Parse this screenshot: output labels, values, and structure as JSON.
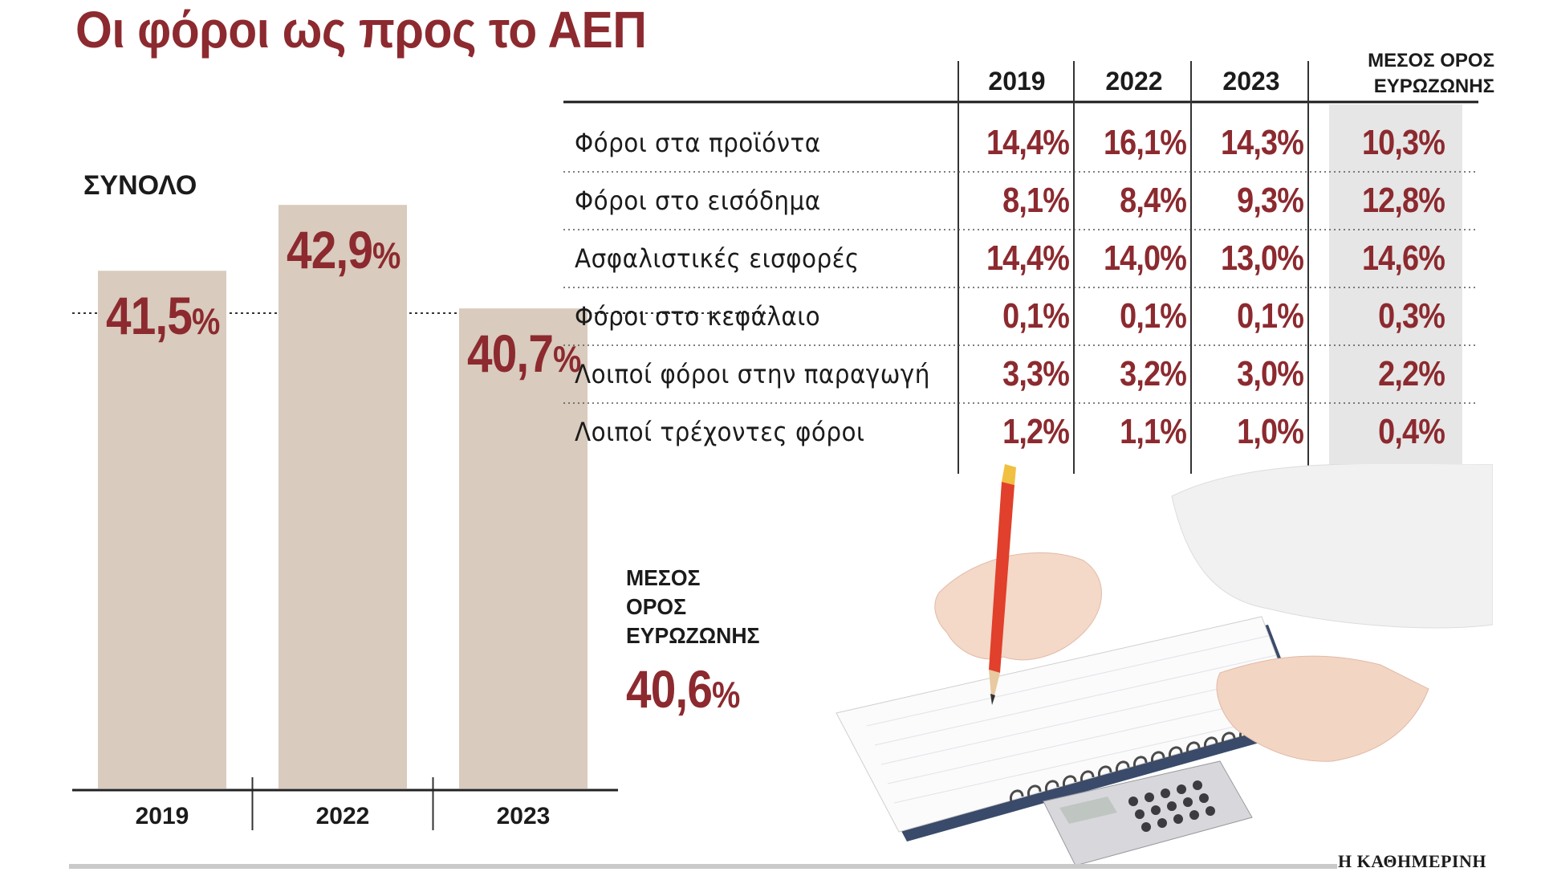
{
  "title": "Οι φόροι ως προς το ΑΕΠ",
  "source_logo": "Η ΚΑΘΗΜΕΡΙΝΗ",
  "colors": {
    "accent": "#8c2a2f",
    "bar": "#d9cbbd",
    "avg_column": "#e6e6e6",
    "text": "#1b1b1b"
  },
  "chart_data": [
    {
      "type": "bar",
      "title": "ΣΥΝΟΛΟ",
      "categories": [
        "2019",
        "2022",
        "2023"
      ],
      "values": [
        41.5,
        42.9,
        40.7
      ],
      "value_labels": [
        "41,5",
        "42,9",
        "40,7"
      ],
      "unit": "%",
      "ylim": [
        30.5,
        43.5
      ],
      "reference": {
        "label_lines": [
          "ΜΕΣΟΣ",
          "ΟΡΟΣ",
          "ΕΥΡΩΖΩΝΗΣ"
        ],
        "value": 40.6,
        "value_label": "40,6"
      }
    },
    {
      "type": "table",
      "columns": [
        "2019",
        "2022",
        "2023"
      ],
      "avg_column": [
        "ΜΕΣΟΣ ΟΡΟΣ",
        "ΕΥΡΩΖΩΝΗΣ"
      ],
      "rows": [
        {
          "label": "Φόροι στα προϊόντα",
          "values": [
            "14,4%",
            "16,1%",
            "14,3%",
            "10,3%"
          ]
        },
        {
          "label": "Φόροι στο εισόδημα",
          "values": [
            "8,1%",
            "8,4%",
            "9,3%",
            "12,8%"
          ]
        },
        {
          "label": "Ασφαλιστικές εισφορές",
          "values": [
            "14,4%",
            "14,0%",
            "13,0%",
            "14,6%"
          ]
        },
        {
          "label": "Φόροι στο κεφάλαιο",
          "values": [
            "0,1%",
            "0,1%",
            "0,1%",
            "0,3%"
          ]
        },
        {
          "label": "Λοιποί φόροι στην παραγωγή",
          "values": [
            "3,3%",
            "3,2%",
            "3,0%",
            "2,2%"
          ]
        },
        {
          "label": "Λοιποί τρέχοντες φόροι",
          "values": [
            "1,2%",
            "1,1%",
            "1,0%",
            "0,4%"
          ]
        }
      ]
    }
  ]
}
